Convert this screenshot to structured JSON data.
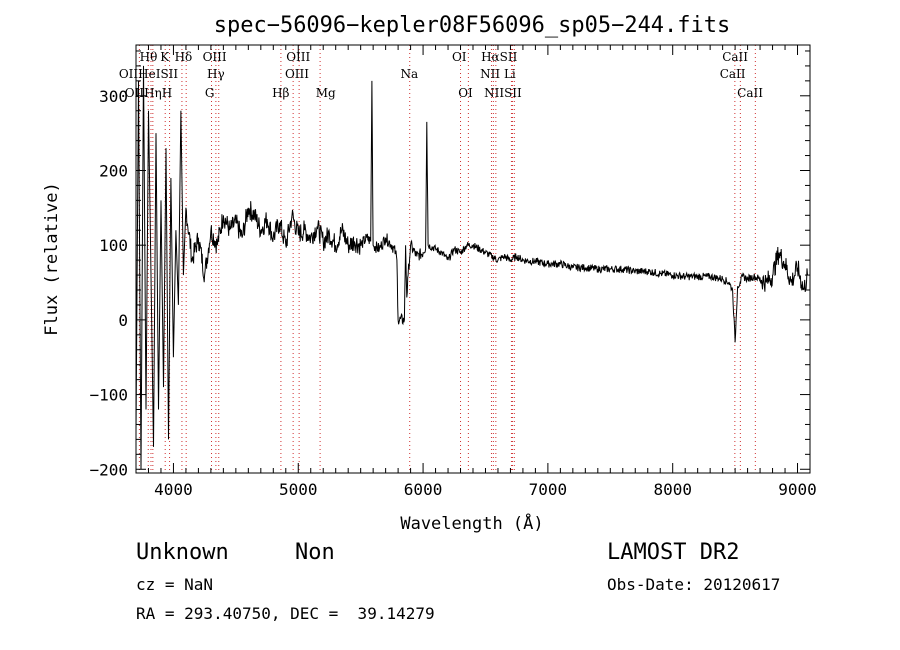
{
  "chart_data": {
    "type": "line",
    "title": "spec−56096−kepler08F56096_sp05−244.fits",
    "xlabel": "Wavelength (Å)",
    "ylabel": "Flux (relative)",
    "xlim": [
      3700,
      9100
    ],
    "ylim": [
      -205,
      368
    ],
    "xticks": [
      4000,
      5000,
      6000,
      7000,
      8000,
      9000
    ],
    "yticks": [
      -200,
      -100,
      0,
      100,
      200,
      300
    ],
    "ytick_labels": [
      "−200",
      "−100",
      "0",
      "100",
      "200",
      "300"
    ],
    "grid": false,
    "series": [
      {
        "x": [
          3700,
          3720,
          3740,
          3760,
          3780,
          3800,
          3820,
          3840,
          3860,
          3880,
          3900,
          3920,
          3940,
          3960,
          3980,
          4000,
          4020,
          4040,
          4060,
          4080,
          4100,
          4150,
          4200,
          4250,
          4300,
          4350,
          4400,
          4450,
          4500,
          4550,
          4600,
          4650,
          4700,
          4750,
          4800,
          4850,
          4900,
          4950,
          5000,
          5050,
          5100,
          5150,
          5200,
          5250,
          5300,
          5350,
          5400,
          5450,
          5500,
          5550,
          5580,
          5590,
          5600,
          5650,
          5700,
          5750,
          5780,
          5790,
          5800,
          5850,
          5860,
          5870,
          5880,
          5900,
          5950,
          6000,
          6020,
          6030,
          6040,
          6100,
          6150,
          6200,
          6250,
          6300,
          6350,
          6400,
          6450,
          6500,
          6550,
          6600,
          6650,
          6700,
          6750,
          6800,
          6900,
          7000,
          7100,
          7200,
          7300,
          7400,
          7500,
          7600,
          7700,
          7800,
          7900,
          8000,
          8100,
          8200,
          8300,
          8400,
          8450,
          8480,
          8500,
          8520,
          8540,
          8560,
          8600,
          8650,
          8700,
          8750,
          8800,
          8850,
          8900,
          8950,
          9000,
          9050,
          9080
        ],
        "y": [
          -150,
          320,
          -200,
          340,
          -120,
          280,
          60,
          -170,
          250,
          -120,
          160,
          -90,
          230,
          -160,
          190,
          -50,
          120,
          20,
          280,
          60,
          150,
          80,
          110,
          60,
          120,
          100,
          140,
          120,
          130,
          110,
          150,
          140,
          120,
          135,
          110,
          130,
          100,
          140,
          115,
          120,
          110,
          125,
          105,
          115,
          100,
          120,
          100,
          105,
          100,
          110,
          105,
          320,
          100,
          95,
          110,
          100,
          90,
          80,
          0,
          0,
          100,
          30,
          60,
          100,
          85,
          90,
          95,
          265,
          100,
          95,
          90,
          80,
          95,
          90,
          100,
          100,
          95,
          90,
          85,
          80,
          85,
          80,
          85,
          80,
          78,
          75,
          75,
          70,
          70,
          68,
          68,
          68,
          65,
          65,
          62,
          60,
          58,
          58,
          58,
          55,
          50,
          40,
          -30,
          45,
          50,
          58,
          55,
          58,
          55,
          50,
          60,
          90,
          75,
          50,
          70,
          40,
          60
        ]
      }
    ],
    "lines": [
      {
        "label": "Hθ",
        "x": 3798
      },
      {
        "label": "OII",
        "x": 3727
      },
      {
        "label": "HeI",
        "x": 3820
      },
      {
        "label": "Hη",
        "x": 3835
      },
      {
        "label": "K",
        "x": 3934
      },
      {
        "label": "SII",
        "x": 4068
      },
      {
        "label": "H",
        "x": 3969
      },
      {
        "label": "Hδ",
        "x": 4102
      },
      {
        "label": "OIII",
        "x": 4363
      },
      {
        "label": "Hγ",
        "x": 4340
      },
      {
        "label": "G",
        "x": 4305
      },
      {
        "label": "Hβ",
        "x": 4861
      },
      {
        "label": "OIII",
        "x": 5007
      },
      {
        "label": "OIII",
        "x": 4959
      },
      {
        "label": "Mg",
        "x": 5175
      },
      {
        "label": "Na",
        "x": 5893
      },
      {
        "label": "OI",
        "x": 6300
      },
      {
        "label": "OI",
        "x": 6363
      },
      {
        "label": "Hα",
        "x": 6563
      },
      {
        "label": "NII",
        "x": 6548
      },
      {
        "label": "NII",
        "x": 6583
      },
      {
        "label": "SII",
        "x": 6716
      },
      {
        "label": "Li",
        "x": 6708
      },
      {
        "label": "SII",
        "x": 6731
      },
      {
        "label": "CaII",
        "x": 8542
      },
      {
        "label": "CaII",
        "x": 8498
      },
      {
        "label": "CaII",
        "x": 8662
      }
    ],
    "line_label_rows": [
      {
        "texts": [
          "Hθ",
          "K",
          "Hδ",
          "OIII",
          "OIII",
          "OI",
          "HαSII",
          "CaII"
        ]
      },
      {
        "texts": [
          "OIIHeISII",
          "Hγ",
          "OIII",
          "Na",
          "NII Li",
          "CaII"
        ]
      },
      {
        "texts": [
          "OIIHηH",
          "G",
          "Hβ",
          "Mg",
          "OI",
          "NIISII",
          "CaII"
        ]
      }
    ]
  },
  "info": {
    "class_label": "Unknown",
    "subclass_label": "Non",
    "survey": "LAMOST DR2",
    "redshift": "cz = NaN",
    "obs_date": "Obs-Date: 20120617",
    "coords": "RA = 293.40750, DEC =  39.14279"
  }
}
